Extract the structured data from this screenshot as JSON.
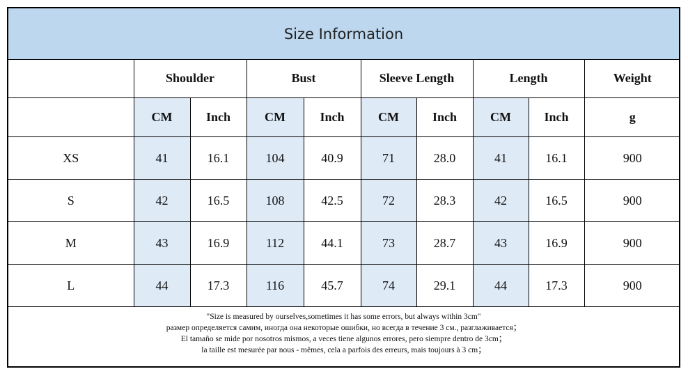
{
  "title": "Size Information",
  "groups": [
    "Shoulder",
    "Bust",
    "Sleeve Length",
    "Length",
    "Weight"
  ],
  "units": {
    "cm": "CM",
    "inch": "Inch",
    "g": "g"
  },
  "rows": [
    {
      "size": "XS",
      "shoulder_cm": "41",
      "shoulder_in": "16.1",
      "bust_cm": "104",
      "bust_in": "40.9",
      "sleeve_cm": "71",
      "sleeve_in": "28.0",
      "length_cm": "41",
      "length_in": "16.1",
      "weight": "900"
    },
    {
      "size": "S",
      "shoulder_cm": "42",
      "shoulder_in": "16.5",
      "bust_cm": "108",
      "bust_in": "42.5",
      "sleeve_cm": "72",
      "sleeve_in": "28.3",
      "length_cm": "42",
      "length_in": "16.5",
      "weight": "900"
    },
    {
      "size": "M",
      "shoulder_cm": "43",
      "shoulder_in": "16.9",
      "bust_cm": "112",
      "bust_in": "44.1",
      "sleeve_cm": "73",
      "sleeve_in": "28.7",
      "length_cm": "43",
      "length_in": "16.9",
      "weight": "900"
    },
    {
      "size": "L",
      "shoulder_cm": "44",
      "shoulder_in": "17.3",
      "bust_cm": "116",
      "bust_in": "45.7",
      "sleeve_cm": "74",
      "sleeve_in": "29.1",
      "length_cm": "44",
      "length_in": "17.3",
      "weight": "900"
    }
  ],
  "notes": [
    "\"Size is measured by ourselves,sometimes it has some errors, but always within 3cm\"",
    "размер определяется самим, иногда она некоторые ошибки, но всегда в течение 3 см., разглаживается；",
    "El tamaño se mide por nosotros mismos, a veces tiene algunos errores, pero siempre dentro de 3cm；",
    "la taille est mesurée par nous - mêmes, cela a parfois des erreurs, mais toujours à 3 cm；"
  ],
  "colors": {
    "header_bg": "#bdd7ee",
    "cm_column_bg": "#deeaf6",
    "border": "#000000"
  }
}
